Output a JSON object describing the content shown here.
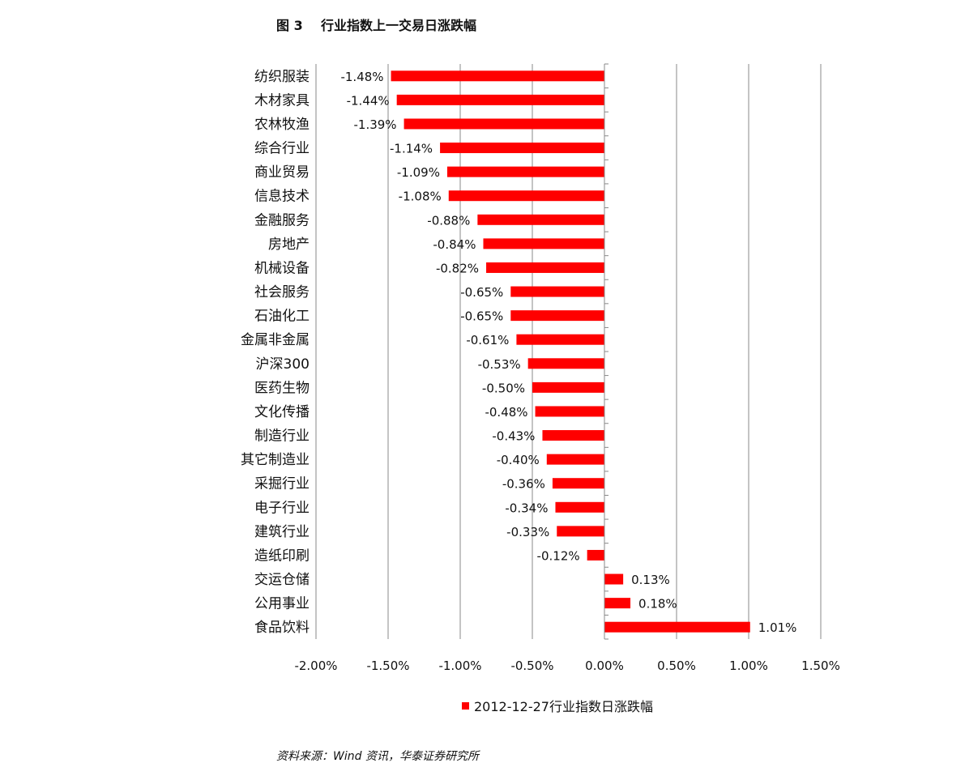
{
  "title": "图 3    行业指数上一交易日涨跌幅",
  "source": "资料来源：Wind 资讯，华泰证券研究所",
  "chart_data": {
    "type": "bar",
    "orientation": "horizontal",
    "title": "图 3    行业指数上一交易日涨跌幅",
    "xlabel": "",
    "ylabel": "",
    "xlim": [
      -2.0,
      1.5
    ],
    "xticks": [
      -2.0,
      -1.5,
      -1.0,
      -0.5,
      0.0,
      0.5,
      1.0,
      1.5
    ],
    "xtick_labels": [
      "-2.00%",
      "-1.50%",
      "-1.00%",
      "-0.50%",
      "0.00%",
      "0.50%",
      "1.00%",
      "1.50%"
    ],
    "grid": "vertical",
    "legend_position": "bottom",
    "bar_color": "#ff0000",
    "categories": [
      "纺织服装",
      "木材家具",
      "农林牧渔",
      "综合行业",
      "商业贸易",
      "信息技术",
      "金融服务",
      "房地产",
      "机械设备",
      "社会服务",
      "石油化工",
      "金属非金属",
      "沪深300",
      "医药生物",
      "文化传播",
      "制造行业",
      "其它制造业",
      "采掘行业",
      "电子行业",
      "建筑行业",
      "造纸印刷",
      "交运仓储",
      "公用事业",
      "食品饮料"
    ],
    "series": [
      {
        "name": "2012-12-27行业指数日涨跌幅",
        "values": [
          -1.48,
          -1.44,
          -1.39,
          -1.14,
          -1.09,
          -1.08,
          -0.88,
          -0.84,
          -0.82,
          -0.65,
          -0.65,
          -0.61,
          -0.53,
          -0.5,
          -0.48,
          -0.43,
          -0.4,
          -0.36,
          -0.34,
          -0.33,
          -0.12,
          0.13,
          0.18,
          1.01
        ],
        "labels": [
          "-1.48%",
          "-1.44%",
          "-1.39%",
          "-1.14%",
          "-1.09%",
          "-1.08%",
          "-0.88%",
          "-0.84%",
          "-0.82%",
          "-0.65%",
          "-0.65%",
          "-0.61%",
          "-0.53%",
          "-0.50%",
          "-0.48%",
          "-0.43%",
          "-0.40%",
          "-0.36%",
          "-0.34%",
          "-0.33%",
          "-0.12%",
          "0.13%",
          "0.18%",
          "1.01%"
        ]
      }
    ]
  }
}
